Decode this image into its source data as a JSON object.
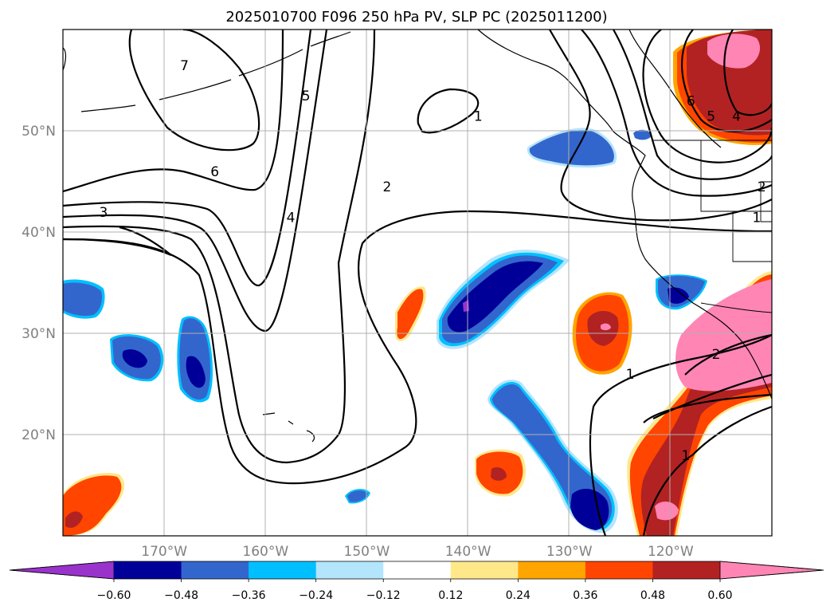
{
  "title": "2025010700 F096 250 hPa PV, SLP PC (2025011200)",
  "map": {
    "lon_ticks": [
      {
        "lon": -170,
        "label": "170°W"
      },
      {
        "lon": -160,
        "label": "160°W"
      },
      {
        "lon": -150,
        "label": "150°W"
      },
      {
        "lon": -140,
        "label": "140°W"
      },
      {
        "lon": -130,
        "label": "130°W"
      },
      {
        "lon": -120,
        "label": "120°W"
      }
    ],
    "lat_ticks": [
      {
        "lat": 20,
        "label": "20°N"
      },
      {
        "lat": 30,
        "label": "30°N"
      },
      {
        "lat": 40,
        "label": "40°N"
      },
      {
        "lat": 50,
        "label": "50°N"
      }
    ],
    "grid": true,
    "contour_labels": [
      {
        "text": "7",
        "lon": -168.0,
        "lat": 56.0
      },
      {
        "text": "5",
        "lon": -156.0,
        "lat": 53.0
      },
      {
        "text": "6",
        "lon": -165.0,
        "lat": 45.5
      },
      {
        "text": "3",
        "lon": -176.0,
        "lat": 41.5
      },
      {
        "text": "4",
        "lon": -157.5,
        "lat": 41.0
      },
      {
        "text": "2",
        "lon": -148.0,
        "lat": 44.0
      },
      {
        "text": "1",
        "lon": -139.0,
        "lat": 51.0
      },
      {
        "text": "5",
        "lon": -116.0,
        "lat": 51.0
      },
      {
        "text": "4",
        "lon": -113.5,
        "lat": 51.0
      },
      {
        "text": "6",
        "lon": -118.0,
        "lat": 52.5
      },
      {
        "text": "2",
        "lon": -111.0,
        "lat": 44.0
      },
      {
        "text": "1",
        "lon": -111.5,
        "lat": 41.0
      },
      {
        "text": "1",
        "lon": -124.0,
        "lat": 25.5
      },
      {
        "text": "1",
        "lon": -118.5,
        "lat": 17.5
      },
      {
        "text": "2",
        "lon": -115.5,
        "lat": 27.5
      }
    ]
  },
  "colorbar": {
    "colors": [
      "#9933cc",
      "#000099",
      "#3366cc",
      "#00bfff",
      "#b3e5fc",
      "#ffffff",
      "#ffe88a",
      "#ffa500",
      "#ff4500",
      "#b22222",
      "#ff85b5"
    ],
    "tick_labels": [
      "−0.60",
      "−0.48",
      "−0.36",
      "−0.24",
      "−0.12",
      "0.12",
      "0.24",
      "0.36",
      "0.48",
      "0.60"
    ]
  }
}
